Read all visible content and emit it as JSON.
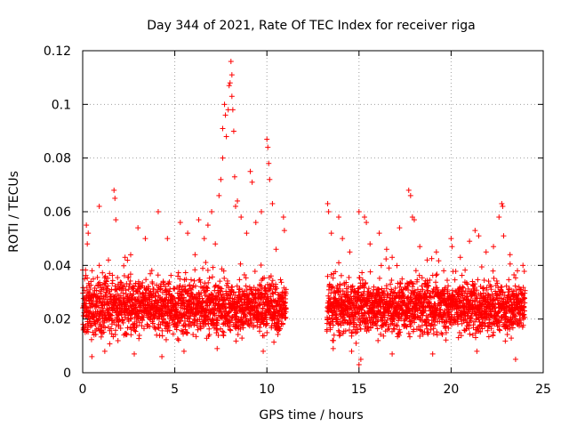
{
  "chart_data": {
    "type": "scatter",
    "title": "Day 344 of 2021, Rate Of TEC Index for receiver riga",
    "xlabel": "GPS time / hours",
    "ylabel": "ROTI / TECUs",
    "xlim": [
      0,
      25
    ],
    "ylim": [
      0,
      0.12
    ],
    "xticks": [
      "0",
      "5",
      "10",
      "15",
      "20",
      "25"
    ],
    "yticks": [
      "0",
      "0.02",
      "0.04",
      "0.06",
      "0.08",
      "0.1",
      "0.12"
    ],
    "grid": true,
    "marker": "+",
    "color": "#ff0000",
    "data_gap_hours": [
      11.05,
      13.25
    ],
    "series": [
      {
        "points": [
          [
            0.2,
            0.055
          ],
          [
            0.25,
            0.048
          ],
          [
            0.3,
            0.052
          ],
          [
            0.45,
            0.034
          ],
          [
            0.9,
            0.04
          ],
          [
            0.9,
            0.062
          ],
          [
            1.4,
            0.042
          ],
          [
            1.7,
            0.068
          ],
          [
            1.75,
            0.065
          ],
          [
            1.8,
            0.057
          ],
          [
            2.3,
            0.043
          ],
          [
            3.0,
            0.054
          ],
          [
            3.4,
            0.05
          ],
          [
            4.1,
            0.06
          ],
          [
            4.6,
            0.05
          ],
          [
            5.3,
            0.056
          ],
          [
            5.7,
            0.052
          ],
          [
            6.1,
            0.044
          ],
          [
            6.3,
            0.057
          ],
          [
            6.6,
            0.05
          ],
          [
            6.8,
            0.055
          ],
          [
            7.0,
            0.06
          ],
          [
            7.2,
            0.048
          ],
          [
            7.4,
            0.066
          ],
          [
            7.5,
            0.072
          ],
          [
            7.6,
            0.08
          ],
          [
            7.6,
            0.091
          ],
          [
            7.7,
            0.1
          ],
          [
            7.75,
            0.096
          ],
          [
            7.8,
            0.088
          ],
          [
            7.9,
            0.098
          ],
          [
            7.95,
            0.107
          ],
          [
            8.0,
            0.108
          ],
          [
            8.05,
            0.116
          ],
          [
            8.1,
            0.111
          ],
          [
            8.1,
            0.103
          ],
          [
            8.15,
            0.098
          ],
          [
            8.2,
            0.09
          ],
          [
            8.25,
            0.073
          ],
          [
            8.3,
            0.062
          ],
          [
            8.4,
            0.064
          ],
          [
            8.6,
            0.058
          ],
          [
            8.9,
            0.052
          ],
          [
            9.1,
            0.075
          ],
          [
            9.2,
            0.071
          ],
          [
            9.4,
            0.056
          ],
          [
            9.7,
            0.06
          ],
          [
            10.0,
            0.087
          ],
          [
            10.05,
            0.084
          ],
          [
            10.1,
            0.078
          ],
          [
            10.15,
            0.072
          ],
          [
            10.3,
            0.063
          ],
          [
            10.5,
            0.046
          ],
          [
            10.9,
            0.058
          ],
          [
            10.95,
            0.053
          ],
          [
            13.3,
            0.063
          ],
          [
            13.35,
            0.06
          ],
          [
            13.5,
            0.052
          ],
          [
            13.9,
            0.058
          ],
          [
            14.1,
            0.05
          ],
          [
            14.5,
            0.045
          ],
          [
            15.0,
            0.06
          ],
          [
            15.3,
            0.058
          ],
          [
            15.4,
            0.056
          ],
          [
            15.6,
            0.048
          ],
          [
            16.1,
            0.052
          ],
          [
            16.5,
            0.046
          ],
          [
            16.8,
            0.043
          ],
          [
            17.2,
            0.054
          ],
          [
            17.7,
            0.068
          ],
          [
            17.8,
            0.066
          ],
          [
            17.9,
            0.058
          ],
          [
            18.0,
            0.057
          ],
          [
            18.3,
            0.047
          ],
          [
            18.7,
            0.042
          ],
          [
            19.2,
            0.045
          ],
          [
            19.6,
            0.038
          ],
          [
            20.0,
            0.05
          ],
          [
            20.05,
            0.047
          ],
          [
            20.5,
            0.043
          ],
          [
            21.0,
            0.049
          ],
          [
            21.3,
            0.053
          ],
          [
            21.5,
            0.051
          ],
          [
            21.9,
            0.045
          ],
          [
            22.3,
            0.047
          ],
          [
            22.6,
            0.058
          ],
          [
            22.75,
            0.063
          ],
          [
            22.8,
            0.062
          ],
          [
            22.85,
            0.051
          ],
          [
            23.2,
            0.044
          ],
          [
            23.6,
            0.038
          ],
          [
            23.9,
            0.04
          ],
          [
            0.5,
            0.006
          ],
          [
            1.2,
            0.008
          ],
          [
            2.8,
            0.007
          ],
          [
            4.3,
            0.006
          ],
          [
            5.5,
            0.008
          ],
          [
            7.3,
            0.009
          ],
          [
            9.8,
            0.008
          ],
          [
            13.6,
            0.009
          ],
          [
            14.6,
            0.008
          ],
          [
            15.0,
            0.003
          ],
          [
            15.1,
            0.005
          ],
          [
            16.8,
            0.007
          ],
          [
            19.0,
            0.007
          ],
          [
            21.4,
            0.008
          ],
          [
            23.5,
            0.005
          ]
        ]
      }
    ],
    "dense_band": {
      "description_values_only": true,
      "segments_hours": [
        [
          0,
          11.05
        ],
        [
          13.25,
          24
        ]
      ],
      "typical_range": [
        0.01,
        0.035
      ],
      "median": 0.019
    }
  }
}
